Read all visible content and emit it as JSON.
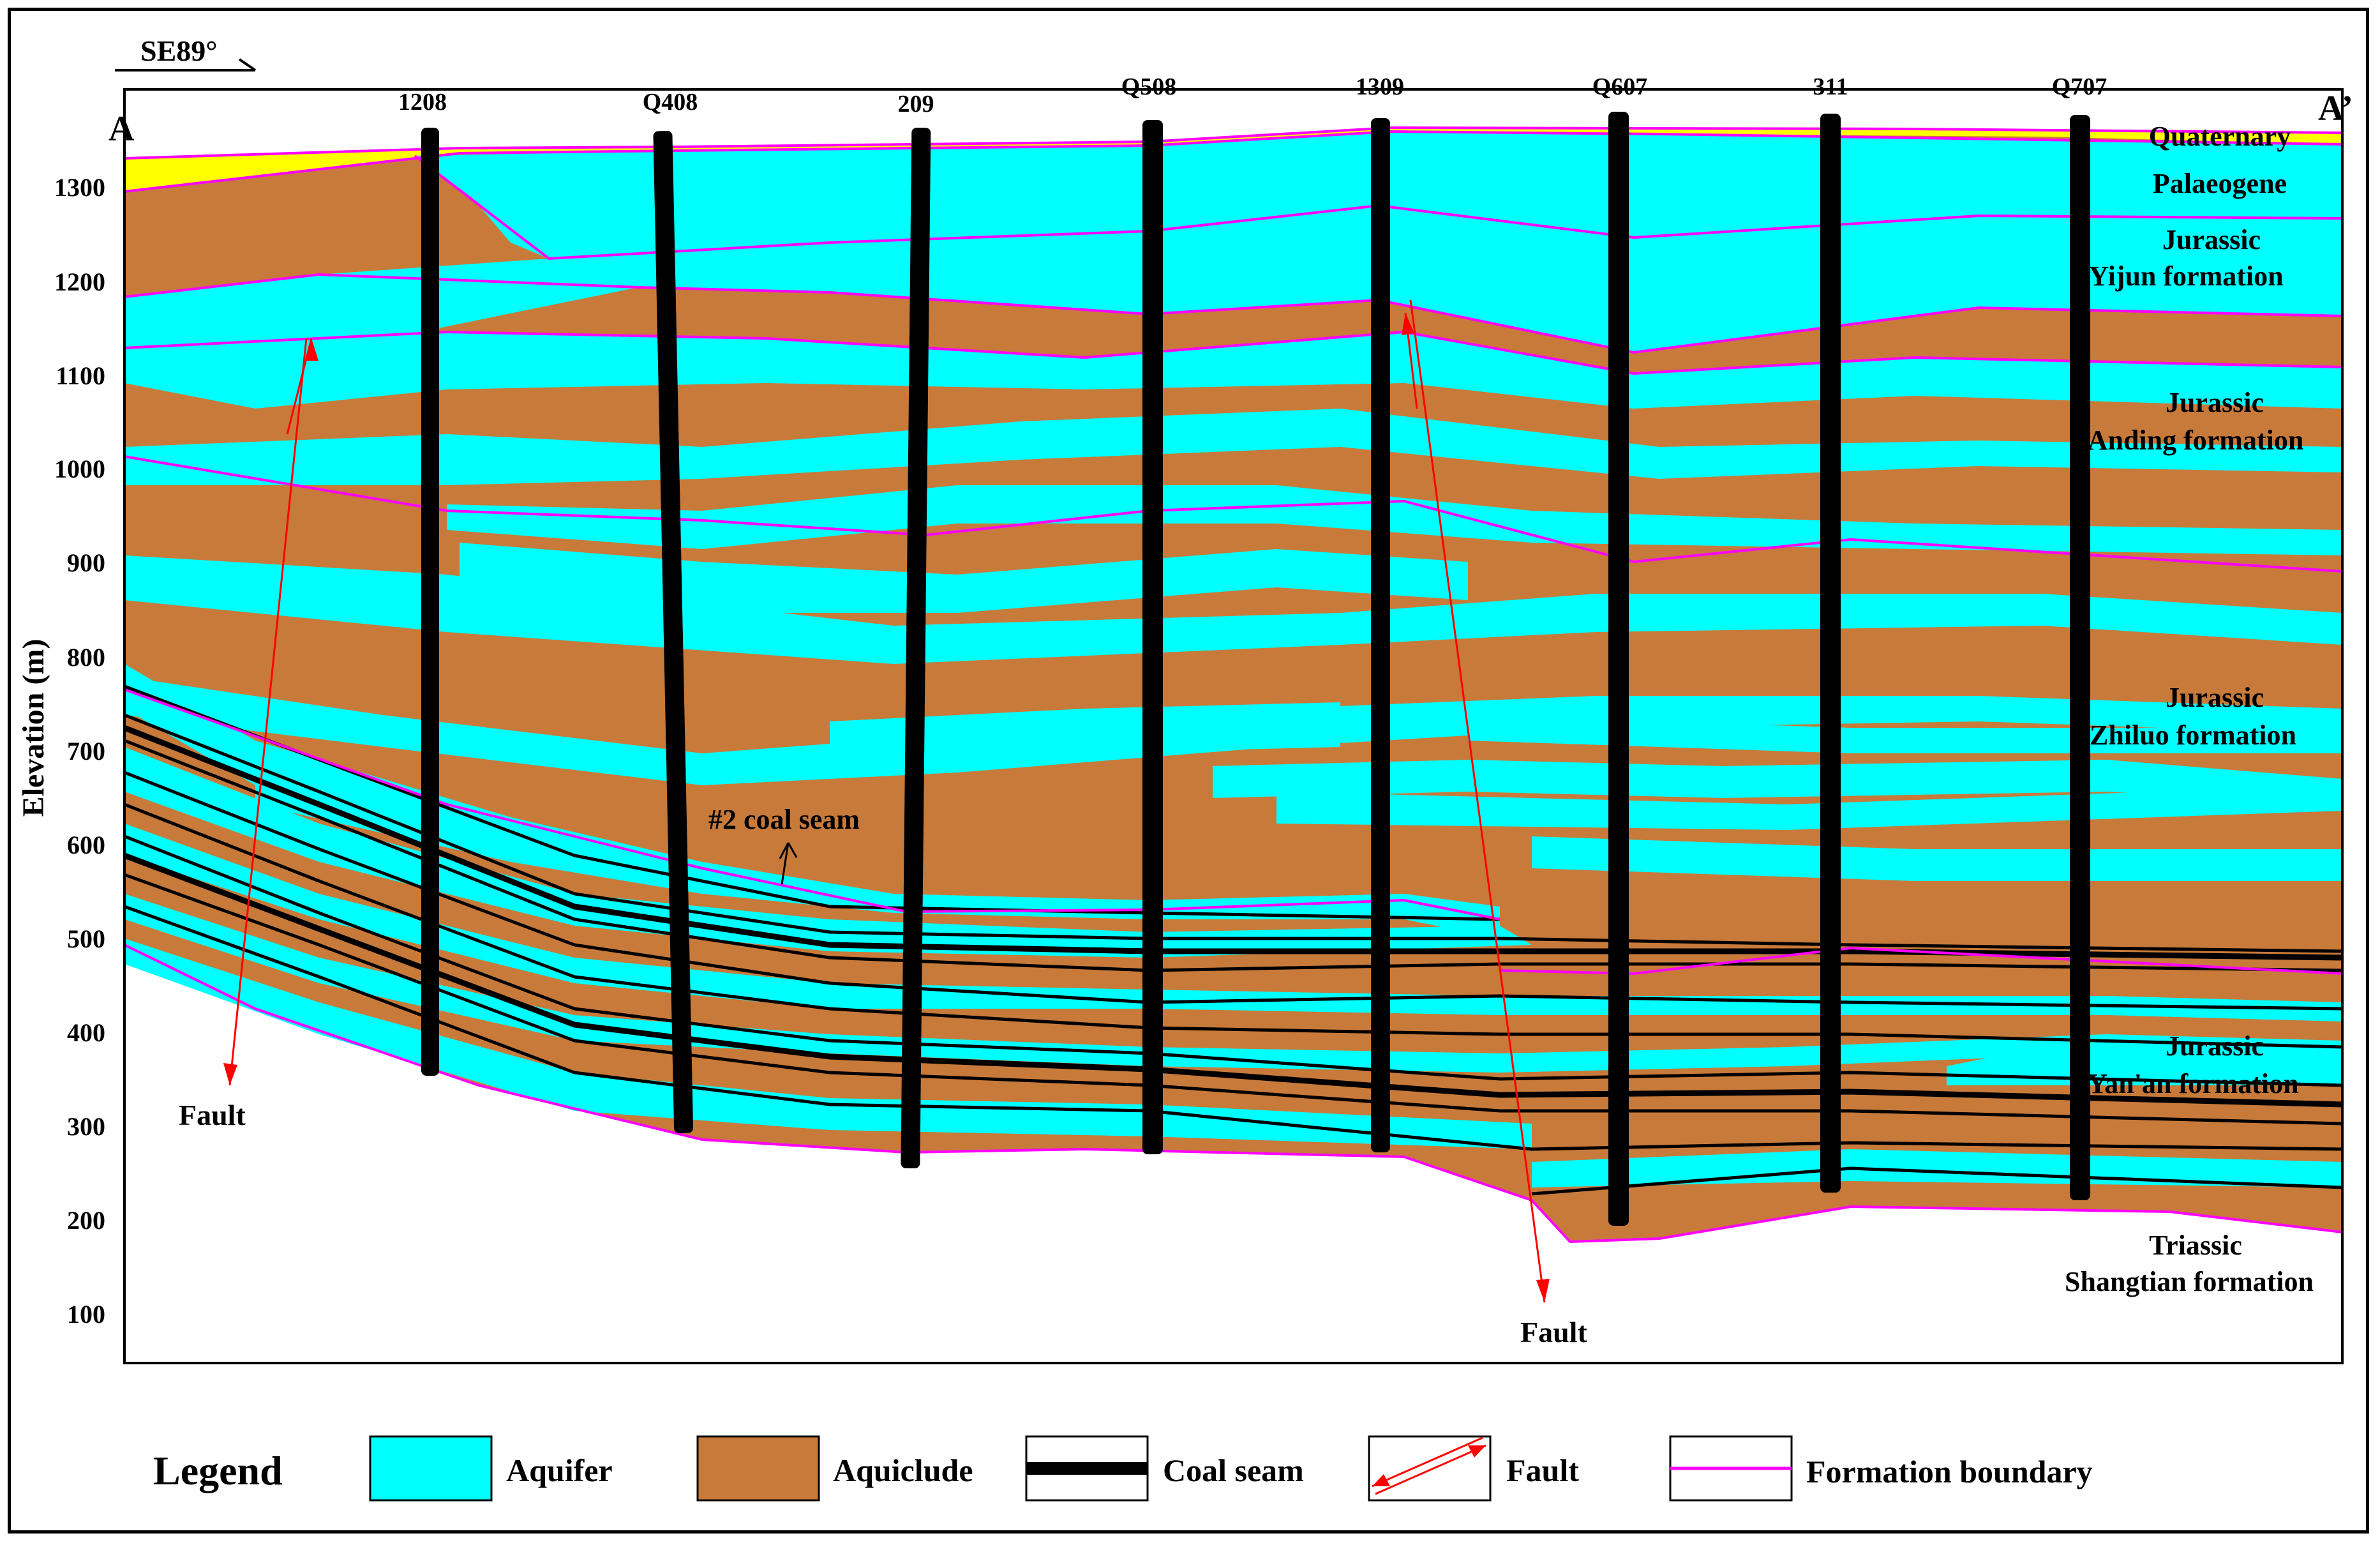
{
  "direction_label": "SE89°",
  "section_start": "A",
  "section_end": "A’",
  "y_axis": {
    "label": "Elevation (m)",
    "ticks": [
      "1300",
      "1200",
      "1100",
      "1000",
      "900",
      "800",
      "700",
      "600",
      "500",
      "400",
      "300",
      "200",
      "100"
    ]
  },
  "wells": [
    "1208",
    "Q408",
    "209",
    "Q508",
    "1309",
    "Q607",
    "311",
    "Q707"
  ],
  "strata": {
    "quaternary": "Quaternary",
    "palaeogene": "Palaeogene",
    "yijun_1": "Jurassic",
    "yijun_2": "Yijun formation",
    "anding_1": "Jurassic",
    "anding_2": "Anding formation",
    "zhiluo_1": "Jurassic",
    "zhiluo_2": "Zhiluo formation",
    "yanan_1": "Jurassic",
    "yanan_2": "Yan'an formation",
    "triassic_1": "Triassic",
    "triassic_2": "Shangtian formation"
  },
  "annotations": {
    "coal_seam_2": "#2 coal seam",
    "fault_left": "Fault",
    "fault_right": "Fault"
  },
  "legend": {
    "title": "Legend",
    "aquifer": "Aquifer",
    "aquiclude": "Aquiclude",
    "coal_seam": "Coal seam",
    "fault": "Fault",
    "formation_boundary": "Formation boundary"
  },
  "colors": {
    "aquifer": "#00ffff",
    "aquiclude": "#c87a3a",
    "quaternary": "#ffff00",
    "formation_boundary": "#ff00ff",
    "fault": "#ff0000",
    "coal_seam": "#000000"
  }
}
